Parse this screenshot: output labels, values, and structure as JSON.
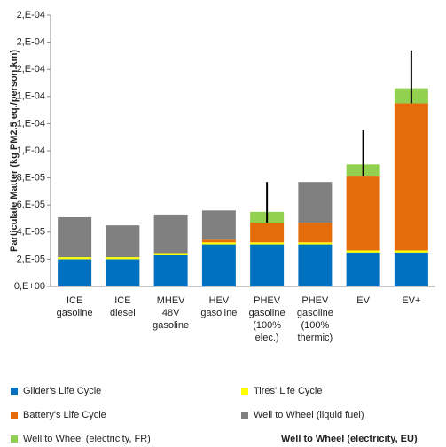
{
  "chart_data": {
    "type": "bar",
    "stacked": true,
    "y_label": "Particulate Matter (kg PM2.5 eq./person.km)",
    "categories": [
      [
        "ICE",
        "gasoline"
      ],
      [
        "ICE",
        "diesel"
      ],
      [
        "MHEV",
        "48V",
        "gasoline"
      ],
      [
        "HEV",
        "gasoline"
      ],
      [
        "PHEV",
        "gasoline",
        "(100%",
        "elec.)"
      ],
      [
        "PHEV",
        "gasoline",
        "(100%",
        "thermic)"
      ],
      [
        "EV"
      ],
      [
        "EV+"
      ]
    ],
    "series": [
      {
        "name": "Glider's Life Cycle",
        "color": "#0070c0",
        "values": [
          2e-05,
          2e-05,
          2.3e-05,
          3.1e-05,
          3.1e-05,
          3.1e-05,
          2.5e-05,
          2.5e-05
        ]
      },
      {
        "name": "Tires' Life Cycle",
        "color": "#ffff00",
        "values": [
          1.5e-06,
          1.5e-06,
          1.5e-06,
          1.5e-06,
          1.5e-06,
          1.5e-06,
          1.5e-06,
          1.5e-06
        ]
      },
      {
        "name": "Battery's Life Cycle",
        "color": "#e46c0a",
        "values": [
          null,
          null,
          null,
          2e-06,
          1.45e-05,
          1.45e-05,
          5.45e-05,
          0.0001085
        ]
      },
      {
        "name": "Well to Wheel (liquid fuel)",
        "color": "#808080",
        "values": [
          2.95e-05,
          2.35e-05,
          2.85e-05,
          2.15e-05,
          null,
          3e-05,
          null,
          null
        ]
      },
      {
        "name": "Well to Wheel (electricity, FR)",
        "color": "#92d050",
        "values": [
          null,
          null,
          null,
          null,
          8e-06,
          null,
          9e-06,
          1.1e-05
        ]
      },
      {
        "name": "Well to Wheel (electricity, EU)",
        "color": "#000000",
        "mark": "error-bar",
        "values": [
          null,
          null,
          null,
          null,
          3e-05,
          null,
          3.4e-05,
          3.9e-05
        ]
      }
    ],
    "ylim": [
      0,
      0.0002
    ],
    "yticks": [
      {
        "value": 0,
        "label": "0,E+00"
      },
      {
        "value": 2e-05,
        "label": "2,E-05"
      },
      {
        "value": 4e-05,
        "label": "4,E-05"
      },
      {
        "value": 6e-05,
        "label": "6,E-05"
      },
      {
        "value": 8e-05,
        "label": "8,E-05"
      },
      {
        "value": 0.0001,
        "label": "1,E-04"
      },
      {
        "value": 0.00012,
        "label": "1,E-04"
      },
      {
        "value": 0.00014,
        "label": "1,E-04"
      },
      {
        "value": 0.00016,
        "label": "2,E-04"
      },
      {
        "value": 0.00018,
        "label": "2,E-04"
      },
      {
        "value": 0.0002,
        "label": "2,E-04"
      }
    ],
    "grid": false
  }
}
